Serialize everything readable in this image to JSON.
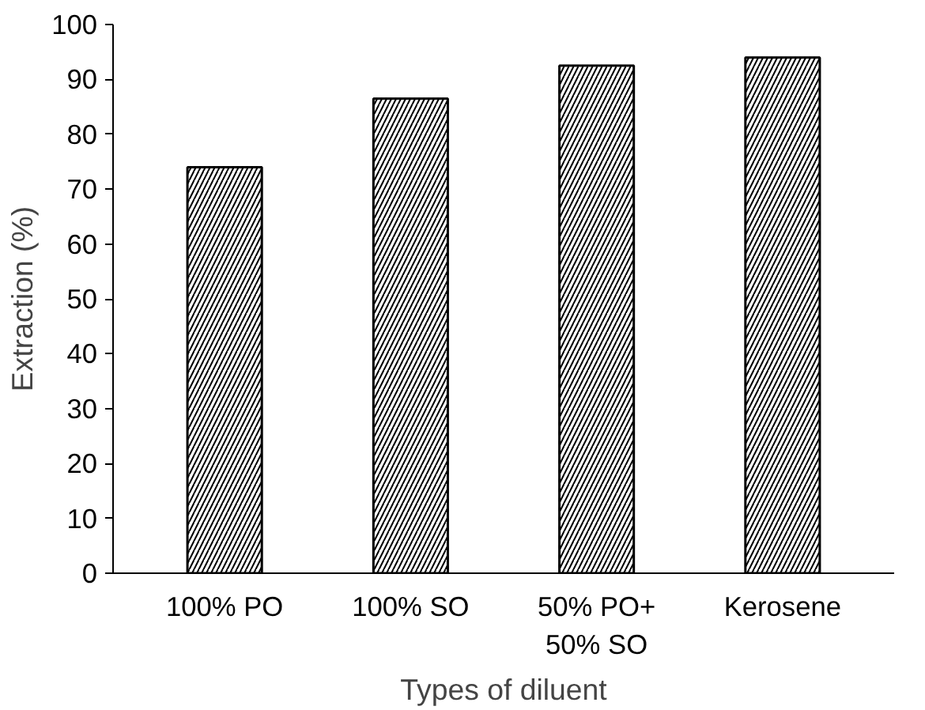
{
  "chart_data": {
    "type": "bar",
    "xlabel": "Types of diluent",
    "ylabel": "Extraction (%)",
    "categories": [
      "100% PO",
      "100% SO",
      "50% PO+\n50% SO",
      "Kerosene"
    ],
    "values": [
      74,
      86.5,
      92.5,
      94
    ],
    "color": "#000000",
    "ylim": [
      0,
      100
    ],
    "yticks": [
      0,
      10,
      20,
      30,
      40,
      50,
      60,
      70,
      80,
      90,
      100
    ],
    "grid": false
  }
}
